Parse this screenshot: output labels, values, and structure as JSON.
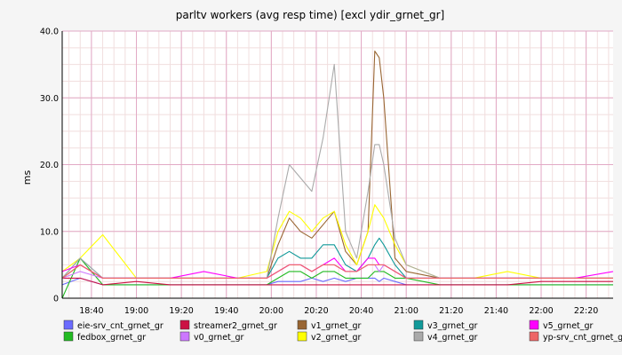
{
  "chart_data": {
    "type": "line",
    "title": "parltv workers (avg resp time) [excl ydir_grnet_gr]",
    "ylabel": "ms",
    "xlabel": "",
    "ylim": [
      0,
      40
    ],
    "grid": true,
    "legend_position": "bottom",
    "x_unit": "time (HH:MM)",
    "x_start": "18:27",
    "x_end": "22:32",
    "x_ticks": [
      "18:40",
      "19:00",
      "19:20",
      "19:40",
      "20:00",
      "20:20",
      "20:40",
      "21:00",
      "21:20",
      "21:40",
      "22:00",
      "22:20"
    ],
    "y_ticks": [
      "0",
      "10.0",
      "20.0",
      "30.0",
      "40.0"
    ],
    "x": [
      "18:27",
      "18:35",
      "18:45",
      "19:00",
      "19:15",
      "19:30",
      "19:45",
      "19:58",
      "20:03",
      "20:08",
      "20:13",
      "20:18",
      "20:23",
      "20:28",
      "20:33",
      "20:38",
      "20:43",
      "20:46",
      "20:48",
      "20:50",
      "20:55",
      "21:00",
      "21:15",
      "21:30",
      "21:45",
      "22:00",
      "22:15",
      "22:32"
    ],
    "series": [
      {
        "name": "eie-srv_cnt_grnet_gr",
        "color": "#6b6bff",
        "values": [
          2,
          3,
          2,
          2,
          2,
          2,
          2,
          2,
          2.5,
          2.5,
          2.5,
          3,
          2.5,
          3,
          2.5,
          3,
          3,
          3,
          2.5,
          3,
          2.5,
          2,
          2,
          2,
          2,
          2,
          2,
          2
        ]
      },
      {
        "name": "fedbox_grnet_gr",
        "color": "#22bb22",
        "values": [
          0,
          6,
          2,
          2,
          2,
          2,
          2,
          2,
          3,
          4,
          4,
          3,
          4,
          4,
          3,
          3,
          3,
          4,
          4,
          4,
          3,
          3,
          2,
          2,
          2,
          2,
          2,
          2
        ]
      },
      {
        "name": "streamer2_grnet_gr",
        "color": "#cc1144",
        "values": [
          3,
          3,
          2,
          2.5,
          2,
          2,
          2,
          2,
          2,
          2,
          2,
          2,
          2,
          2,
          2,
          2,
          2,
          2,
          2,
          2,
          2,
          2,
          2,
          2,
          2,
          2.5,
          2.5,
          2.5
        ]
      },
      {
        "name": "v0_grnet_gr",
        "color": "#cc77ff",
        "values": [
          3,
          4,
          3,
          3,
          3,
          3,
          3,
          3,
          4,
          5,
          5,
          4,
          5,
          5,
          4,
          4,
          5,
          5,
          4,
          5,
          4,
          3,
          3,
          3,
          3,
          3,
          3,
          3
        ]
      },
      {
        "name": "v1_grnet_gr",
        "color": "#996633",
        "values": [
          3,
          5,
          3,
          3,
          3,
          3,
          3,
          3,
          8,
          12,
          10,
          9,
          11,
          13,
          7,
          5,
          10,
          37,
          36,
          30,
          6,
          4,
          3,
          3,
          3,
          3,
          3,
          3
        ]
      },
      {
        "name": "v2_grnet_gr",
        "color": "#ffff00",
        "values": [
          4,
          6,
          9.5,
          3,
          3,
          3,
          3,
          4,
          10,
          13,
          12,
          10,
          12,
          13,
          8,
          5,
          10,
          14,
          13,
          12,
          8,
          5,
          3,
          3,
          4,
          3,
          3,
          3
        ]
      },
      {
        "name": "v3_grnet_gr",
        "color": "#119999",
        "values": [
          3,
          6,
          3,
          3,
          3,
          3,
          3,
          3,
          6,
          7,
          6,
          6,
          8,
          8,
          5,
          4,
          6,
          8,
          9,
          8,
          5,
          3,
          3,
          3,
          3,
          3,
          3,
          3
        ]
      },
      {
        "name": "v4_grnet_gr",
        "color": "#aaaaaa",
        "values": [
          3,
          6,
          3,
          3,
          3,
          3,
          3,
          3,
          12,
          20,
          18,
          16,
          24,
          35,
          10,
          6,
          16,
          23,
          23,
          20,
          9,
          5,
          3,
          3,
          3,
          3,
          3,
          3
        ]
      },
      {
        "name": "v5_grnet_gr",
        "color": "#ff00ff",
        "values": [
          4,
          5,
          3,
          3,
          3,
          4,
          3,
          3,
          4,
          5,
          5,
          4,
          5,
          6,
          4,
          4,
          6,
          6,
          5,
          5,
          4,
          3,
          3,
          3,
          3,
          3,
          3,
          4
        ]
      },
      {
        "name": "yp-srv_cnt_grnet_gr",
        "color": "#ee6666",
        "values": [
          3,
          5,
          3,
          3,
          3,
          3,
          3,
          3,
          4,
          5,
          5,
          4,
          5,
          5,
          4,
          4,
          5,
          5,
          5,
          5,
          4,
          3,
          3,
          3,
          3,
          3,
          3,
          3
        ]
      }
    ]
  }
}
